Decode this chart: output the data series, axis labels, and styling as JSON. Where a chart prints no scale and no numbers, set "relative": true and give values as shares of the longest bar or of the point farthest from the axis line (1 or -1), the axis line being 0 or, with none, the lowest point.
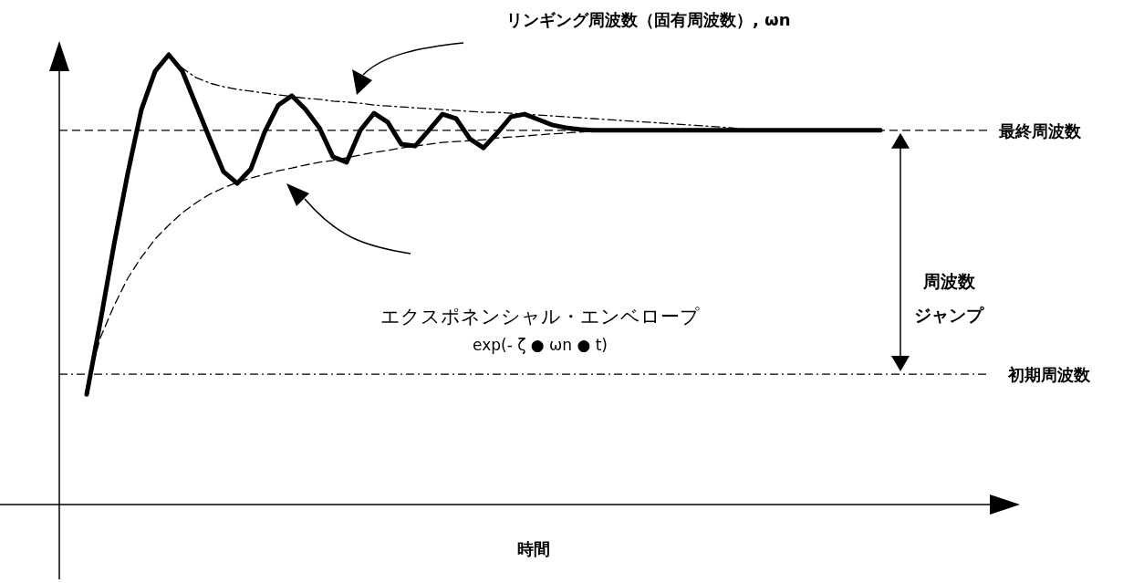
{
  "chart_data": {
    "type": "line",
    "relative": true,
    "xlabel": "時間",
    "categories": [
      null,
      null,
      null,
      null,
      null,
      null,
      null,
      null,
      null,
      null,
      null,
      null,
      null,
      null,
      null,
      null,
      null,
      null,
      null,
      null,
      null,
      null,
      null,
      null,
      null,
      null,
      null,
      null,
      null,
      null,
      null,
      null,
      null,
      null,
      null,
      null,
      null,
      null,
      null,
      null,
      null,
      null,
      null,
      null,
      null,
      null,
      null,
      null,
      null,
      null,
      null,
      null,
      null,
      null,
      null,
      null,
      null,
      null,
      null
    ],
    "series": [
      {
        "color": "#000000",
        "line_style": "solid",
        "values": [
          0.245,
          0.406,
          0.578,
          0.736,
          0.878,
          0.963,
          1.0,
          0.963,
          0.888,
          0.813,
          0.74,
          0.714,
          0.746,
          0.828,
          0.888,
          0.909,
          0.878,
          0.838,
          0.773,
          0.761,
          0.832,
          0.87,
          0.85,
          0.801,
          0.797,
          0.832,
          0.868,
          0.858,
          0.813,
          0.793,
          0.826,
          0.862,
          0.868,
          0.856,
          0.844,
          0.838,
          0.834,
          0.832,
          0.832,
          0.832,
          0.832,
          0.832,
          0.832,
          0.832,
          0.832,
          0.832,
          0.832,
          0.832,
          0.832,
          0.832,
          0.832,
          0.832,
          0.832,
          0.832,
          0.832,
          0.832,
          0.832,
          0.832,
          0.832
        ]
      },
      {
        "color": "#000000",
        "line_style": "dotted",
        "values": [
          null,
          null,
          null,
          null,
          null,
          null,
          1.0,
          0.97,
          0.949,
          0.937,
          0.929,
          0.923,
          0.919,
          0.915,
          0.911,
          0.907,
          0.903,
          0.901,
          0.897,
          0.895,
          0.892,
          0.888,
          0.886,
          0.884,
          0.882,
          0.88,
          0.878,
          0.876,
          0.874,
          0.872,
          0.872,
          0.87,
          0.868,
          0.866,
          0.864,
          0.862,
          0.86,
          0.858,
          0.856,
          0.854,
          0.852,
          0.85,
          0.848,
          0.846,
          0.844,
          0.842,
          0.84,
          0.838,
          0.834,
          null,
          null,
          null,
          null,
          null,
          null,
          null,
          null,
          null,
          null
        ]
      },
      {
        "color": "#000000",
        "line_style": "dashed",
        "values": [
          0.26,
          0.371,
          0.442,
          0.503,
          0.55,
          0.59,
          0.621,
          0.649,
          0.671,
          0.69,
          0.704,
          0.716,
          0.726,
          0.734,
          0.742,
          0.748,
          0.755,
          0.761,
          0.765,
          0.771,
          0.777,
          0.783,
          0.787,
          0.793,
          0.797,
          0.801,
          0.805,
          0.807,
          0.809,
          0.811,
          0.815,
          0.817,
          0.819,
          0.822,
          0.824,
          0.826,
          0.828,
          0.83,
          null,
          null,
          null,
          null,
          null,
          null,
          null,
          null,
          null,
          null,
          null,
          null,
          null,
          null,
          null,
          null,
          null,
          null,
          null,
          null,
          null
        ]
      }
    ],
    "ref_lines": [
      {
        "axis": "y",
        "value": 0.832,
        "label": "最終周波数",
        "line_style": "dashed"
      },
      {
        "axis": "y",
        "value": 0.29,
        "label": "初期周波数",
        "line_style": "dotted"
      }
    ],
    "annotations": [
      "リンギング周波数（固有周波数）, ωn",
      "エクスポネンシャル・エンベロープ",
      "exp(- ζ ● ωn ● t)",
      "周波数",
      "ジャンプ"
    ]
  }
}
